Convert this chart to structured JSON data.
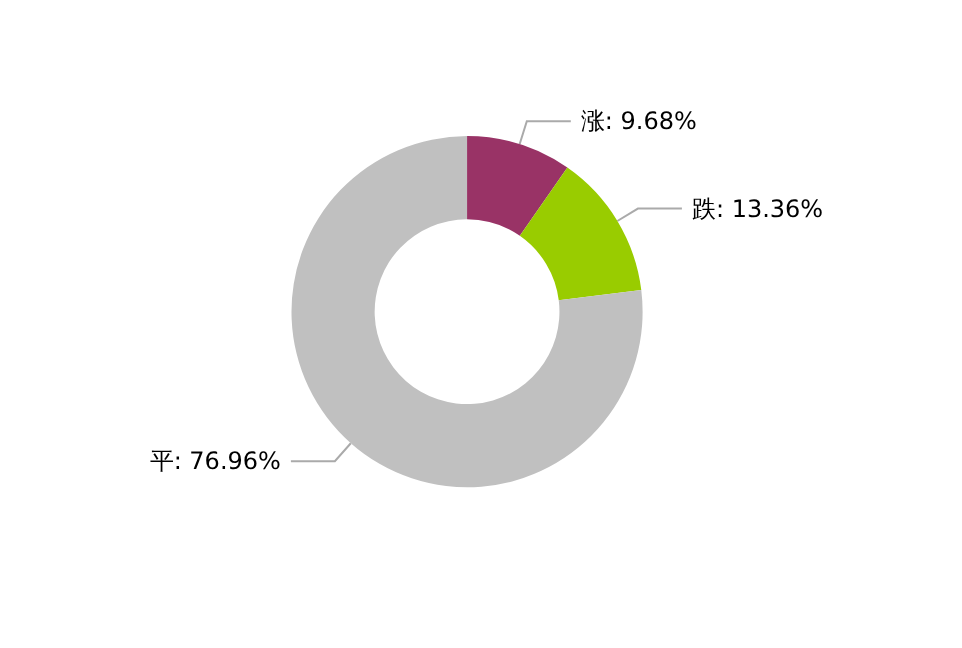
{
  "chart_data": {
    "type": "donut",
    "categories": [
      "涨",
      "跌",
      "平"
    ],
    "values": [
      9.68,
      13.36,
      76.96
    ],
    "value_labels": [
      "9.68%",
      "13.36%",
      "76.96%"
    ],
    "colors": [
      "#993366",
      "#99cc00",
      "#c0c0c0"
    ],
    "legend": false
  }
}
